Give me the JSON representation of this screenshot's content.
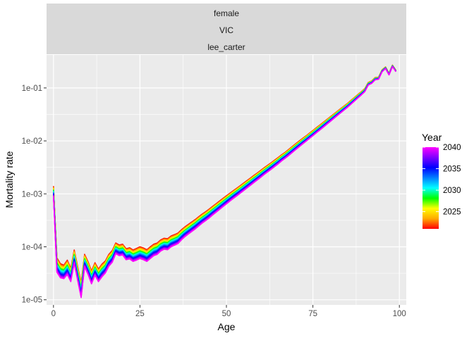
{
  "chart_data": {
    "type": "line",
    "facet_strips": [
      "female",
      "VIC",
      "lee_carter"
    ],
    "xlabel": "Age",
    "ylabel": "Mortality rate",
    "x_scale": "linear",
    "y_scale": "log10",
    "xlim": [
      -2,
      102
    ],
    "ylim": [
      8e-06,
      0.42
    ],
    "x_ticks": [
      0,
      25,
      50,
      75,
      100
    ],
    "x_tick_labels": [
      "0",
      "25",
      "50",
      "75",
      "100"
    ],
    "y_ticks": [
      1e-05,
      0.0001,
      0.001,
      0.01,
      0.1
    ],
    "y_tick_labels": [
      "1e-05",
      "1e-04",
      "1e-03",
      "1e-02",
      "1e-01"
    ],
    "grid": true,
    "legend": {
      "title": "Year",
      "placement": "right",
      "type": "colorbar",
      "range": [
        2021,
        2040
      ],
      "ticks": [
        2025,
        2030,
        2035,
        2040
      ],
      "tick_labels": [
        "2025",
        "2030",
        "2035",
        "2040"
      ],
      "colors": [
        "#ff0000",
        "#ffaa00",
        "#ffff00",
        "#00ff00",
        "#00ffff",
        "#0080ff",
        "#0000ff",
        "#8000ff",
        "#ff00ff"
      ]
    },
    "year_range": [
      2021,
      2040
    ],
    "ages": [
      0,
      1,
      2,
      3,
      4,
      5,
      6,
      7,
      8,
      9,
      10,
      11,
      12,
      13,
      14,
      15,
      16,
      17,
      18,
      19,
      20,
      21,
      22,
      23,
      24,
      25,
      26,
      27,
      28,
      29,
      30,
      31,
      32,
      33,
      34,
      35,
      36,
      37,
      38,
      39,
      40,
      41,
      42,
      43,
      44,
      45,
      46,
      47,
      48,
      49,
      50,
      51,
      52,
      53,
      54,
      55,
      56,
      57,
      58,
      59,
      60,
      61,
      62,
      63,
      64,
      65,
      66,
      67,
      68,
      69,
      70,
      71,
      72,
      73,
      74,
      75,
      76,
      77,
      78,
      79,
      80,
      81,
      82,
      83,
      84,
      85,
      86,
      87,
      88,
      89,
      90,
      91,
      92,
      93,
      94,
      95,
      96,
      97,
      98,
      99
    ],
    "series_first_year": [
      0.0014,
      6.2e-05,
      4.8e-05,
      4.5e-05,
      5.6e-05,
      3.9e-05,
      8.7e-05,
      4.2e-05,
      2.1e-05,
      7.2e-05,
      5.2e-05,
      3.5e-05,
      5e-05,
      3.8e-05,
      4.7e-05,
      5.4e-05,
      7.2e-05,
      8.5e-05,
      0.000118,
      0.000108,
      0.000112,
      9.2e-05,
      9.6e-05,
      8.7e-05,
      9.3e-05,
      0.0001,
      9.5e-05,
      8.8e-05,
      0.0001,
      0.000112,
      0.000118,
      0.000135,
      0.000145,
      0.000142,
      0.00016,
      0.00017,
      0.000182,
      0.00021,
      0.000238,
      0.000265,
      0.000295,
      0.000328,
      0.00037,
      0.000415,
      0.00046,
      0.000515,
      0.00058,
      0.00065,
      0.00073,
      0.00082,
      0.00092,
      0.00103,
      0.00115,
      0.00128,
      0.00143,
      0.0016,
      0.00179,
      0.002,
      0.00224,
      0.0025,
      0.0028,
      0.00314,
      0.0035,
      0.0039,
      0.00436,
      0.00488,
      0.0055,
      0.0061,
      0.0069,
      0.0078,
      0.0088,
      0.0099,
      0.0111,
      0.0124,
      0.014,
      0.0157,
      0.0177,
      0.0199,
      0.0224,
      0.0252,
      0.0284,
      0.032,
      0.036,
      0.0405,
      0.0455,
      0.051,
      0.058,
      0.066,
      0.075,
      0.085,
      0.097,
      0.127,
      0.136,
      0.157,
      0.16,
      0.22,
      0.25,
      0.19,
      0.27,
      0.215
    ],
    "series_last_year": [
      0.0009,
      3.3e-05,
      2.6e-05,
      2.5e-05,
      3e-05,
      2.2e-05,
      4.9e-05,
      2.3e-05,
      1.1e-05,
      4.2e-05,
      3e-05,
      2e-05,
      2.9e-05,
      2.2e-05,
      2.7e-05,
      3.2e-05,
      4.3e-05,
      5.1e-05,
      7.4e-05,
      6.8e-05,
      7e-05,
      5.7e-05,
      5.9e-05,
      5.3e-05,
      5.6e-05,
      6e-05,
      5.7e-05,
      5.3e-05,
      6e-05,
      6.8e-05,
      7.2e-05,
      8.3e-05,
      9e-05,
      8.8e-05,
      0.0001,
      0.000107,
      0.000115,
      0.000135,
      0.000155,
      0.000174,
      0.000195,
      0.000218,
      0.000248,
      0.00028,
      0.000312,
      0.00035,
      0.000398,
      0.000448,
      0.000506,
      0.000572,
      0.000646,
      0.000728,
      0.000818,
      0.000915,
      0.001028,
      0.001154,
      0.001298,
      0.001458,
      0.00164,
      0.00184,
      0.00207,
      0.00234,
      0.00262,
      0.00293,
      0.00329,
      0.0037,
      0.0042,
      0.0047,
      0.0053,
      0.006,
      0.0068,
      0.0077,
      0.0087,
      0.0098,
      0.0111,
      0.0125,
      0.0142,
      0.016,
      0.0181,
      0.0205,
      0.0232,
      0.0263,
      0.0298,
      0.0337,
      0.0381,
      0.043,
      0.0492,
      0.0563,
      0.0645,
      0.0737,
      0.0848,
      0.113,
      0.122,
      0.142,
      0.146,
      0.202,
      0.232,
      0.176,
      0.253,
      0.203
    ]
  }
}
